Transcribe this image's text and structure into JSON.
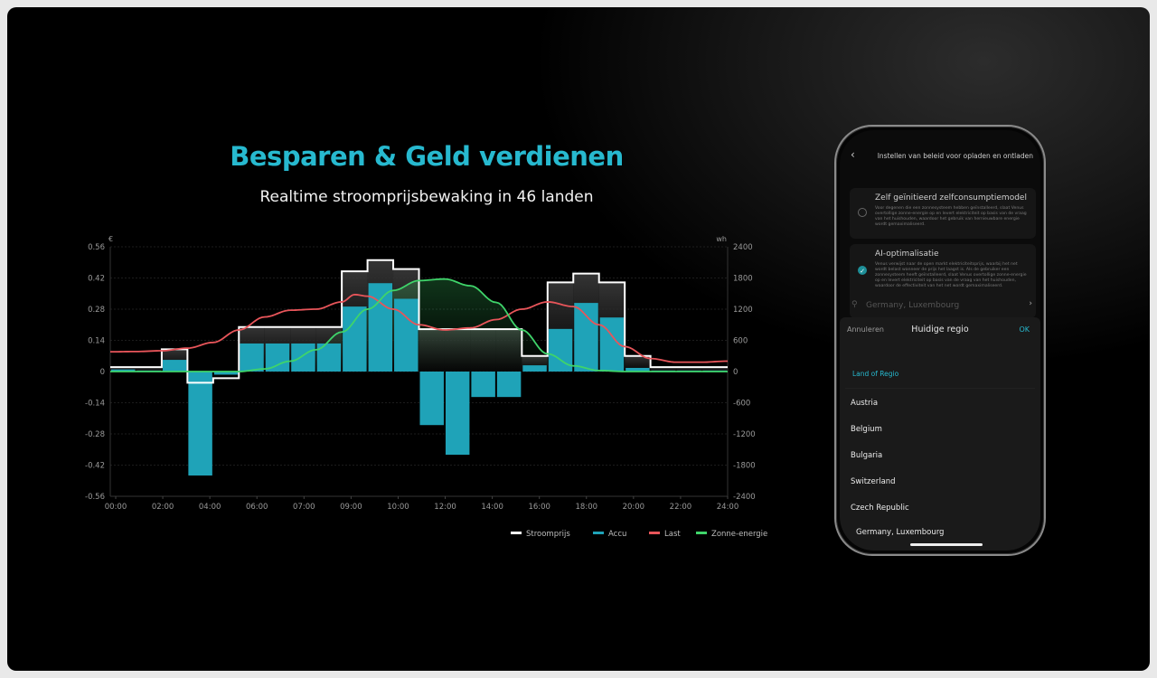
{
  "header": {
    "title": "Besparen & Geld verdienen",
    "subtitle": "Realtime stroomprijsbewaking in 46 landen"
  },
  "colors": {
    "accent": "#27b9cf",
    "stroomprijs": "#ffffff",
    "accu": "#1fa3b8",
    "last": "#e8555a",
    "zonne": "#3fd46a"
  },
  "chart_data": {
    "type": "bar+line",
    "left_unit": "€",
    "right_unit": "wh",
    "left_ticks": [
      "0.56",
      "0.42",
      "0.28",
      "0.14",
      "0",
      "-0.14",
      "-0.28",
      "-0.42",
      "-0.56"
    ],
    "right_ticks": [
      "2400",
      "1800",
      "1200",
      "600",
      "0",
      "-600",
      "-1200",
      "-1800",
      "-2400"
    ],
    "ylim_left": [
      -0.56,
      0.56
    ],
    "ylim_right": [
      -2400,
      2400
    ],
    "x_tick_labels": [
      "00:00",
      "02:00",
      "04:00",
      "06:00",
      "07:00",
      "09:00",
      "10:00",
      "12:00",
      "14:00",
      "16:00",
      "18:00",
      "20:00",
      "22:00",
      "24:00"
    ],
    "xlim_hours": [
      0,
      24
    ],
    "grid": true,
    "legend_position": "bottom-right",
    "series": [
      {
        "name": "Stroomprijs",
        "type": "step",
        "axis": "left",
        "values": [
          0.02,
          0.02,
          0.1,
          -0.05,
          -0.03,
          0.2,
          0.2,
          0.2,
          0.2,
          0.45,
          0.5,
          0.46,
          0.19,
          0.19,
          0.19,
          0.19,
          0.07,
          0.4,
          0.44,
          0.4,
          0.07,
          0.02,
          0.02,
          0.02
        ]
      },
      {
        "name": "Accu",
        "type": "bar",
        "axis": "right",
        "values": [
          40,
          20,
          225,
          -2000,
          -60,
          540,
          540,
          540,
          540,
          1250,
          1700,
          1400,
          -1030,
          -1600,
          -490,
          -490,
          120,
          820,
          1320,
          1040,
          70,
          20,
          20,
          20
        ]
      },
      {
        "name": "Last",
        "type": "line",
        "axis": "right",
        "x": [
          0,
          1,
          2,
          3,
          4,
          5,
          6,
          7,
          8,
          9,
          9.5,
          10,
          11,
          12,
          13,
          14,
          15,
          16,
          17,
          18,
          19,
          20,
          21,
          22,
          23,
          24
        ],
        "values": [
          380,
          385,
          400,
          450,
          560,
          800,
          1050,
          1180,
          1200,
          1340,
          1480,
          1450,
          1200,
          900,
          800,
          840,
          1000,
          1200,
          1340,
          1250,
          900,
          480,
          250,
          180,
          180,
          200
        ]
      },
      {
        "name": "Zonne-energie",
        "type": "line",
        "axis": "right",
        "x": [
          0,
          5,
          6,
          7,
          8,
          9,
          10,
          11,
          12,
          13,
          14,
          15,
          16,
          17,
          18,
          19,
          20,
          24
        ],
        "values": [
          0,
          0,
          50,
          200,
          420,
          760,
          1200,
          1560,
          1750,
          1780,
          1650,
          1330,
          800,
          340,
          110,
          20,
          0,
          0
        ]
      }
    ]
  },
  "phone": {
    "header_title": "Instellen van beleid voor opladen en ontladen",
    "options": [
      {
        "title": "Zelf geïnitieerd zelfconsumptiemodel",
        "desc": "Voor degenen die een zonnesysteem hebben geïnstalleerd, slaat Venus overtollige zonne-energie op en levert elektriciteit op basis van de vraag van het huishouden, waardoor het gebruik van hernieuwbare energie wordt gemaximaliseerd.",
        "selected": false
      },
      {
        "title": "AI-optimalisatie",
        "desc": "Venus verwijst naar de open markt elektriciteitsprijs, waarbij het net wordt belast wanneer de prijs het laagst is. Als de gebruiker een zonnesysteem heeft geïnstalleerd, slaat Venus overtollige zonne-energie op en levert elektriciteit op basis van de vraag van het huishouden, waardoor de effectiviteit van het net wordt gemaximaliseerd.",
        "selected": true
      }
    ],
    "location": "Germany, Luxembourg",
    "sheet": {
      "cancel": "Annuleren",
      "title": "Huidige regio",
      "ok": "OK",
      "section": "Land of Regio",
      "items": [
        "Austria",
        "Belgium",
        "Bulgaria",
        "Switzerland",
        "Czech Republic",
        "Germany, Luxembourg"
      ]
    }
  }
}
